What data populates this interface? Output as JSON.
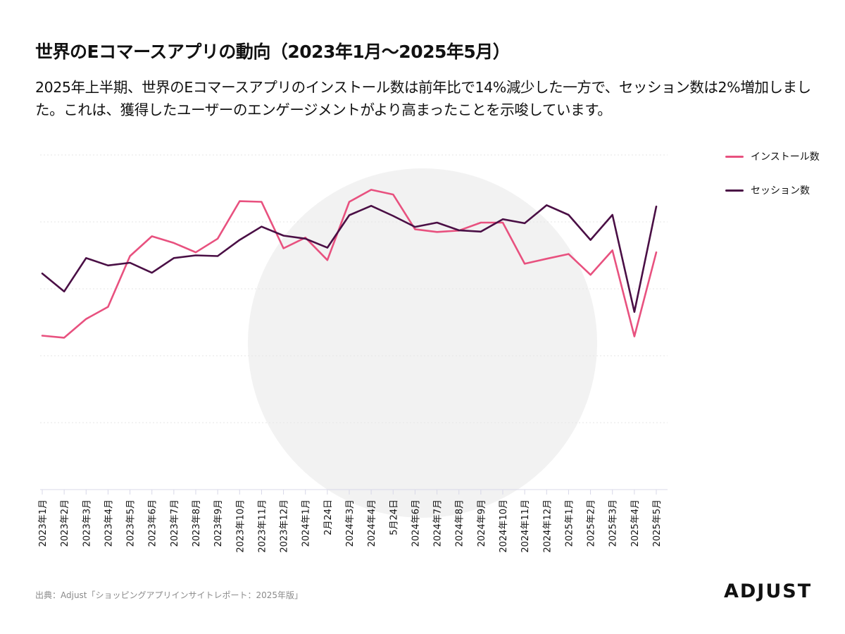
{
  "header": {
    "title": "世界のEコマースアプリの動向（2023年1月〜2025年5月）",
    "subtitle": "2025年上半期、世界のEコマースアプリのインストール数は前年比で14%減少した一方で、セッション数は2%増加しました。これは、獲得したユーザーのエンゲージメントがより高まったことを示唆しています。"
  },
  "footer": {
    "source": "出典：Adjust「ショッピングアプリインサイトレポート：2025年版」",
    "logo_text": "ADJUST"
  },
  "colors": {
    "installs": "#e8517f",
    "sessions": "#4a0f45",
    "grid": "#e6e6e6",
    "axis": "#d8d8e8",
    "watermark": "#f2f2f2"
  },
  "chart_data": {
    "type": "line",
    "title": "",
    "xlabel": "",
    "ylabel": "",
    "ylim": [
      0,
      100
    ],
    "grid": true,
    "legend_position": "top-right",
    "categories": [
      "2023年1月",
      "2023年2月",
      "2023年3月",
      "2023年4月",
      "2023年5月",
      "2023年6月",
      "2023年7月",
      "2023年8月",
      "2023年9月",
      "2023年10月",
      "2023年11月",
      "2023年12月",
      "2024年1月",
      "2月24日",
      "2024年3月",
      "2024年4月",
      "5月24日",
      "2024年6月",
      "2024年7月",
      "2024年8月",
      "2024年9月",
      "2024年10月",
      "2024年11月",
      "2024年12月",
      "2025年1月",
      "2025年2月",
      "2025年3月",
      "2025年4月",
      "2025年5月"
    ],
    "series": [
      {
        "name": "インストール数",
        "color": "#e8517f",
        "values": [
          46.0,
          45.4,
          51.0,
          54.6,
          69.8,
          75.7,
          73.7,
          70.9,
          75.0,
          86.2,
          86.0,
          72.1,
          75.3,
          68.6,
          86.0,
          89.6,
          88.2,
          77.8,
          77.0,
          77.4,
          79.8,
          79.8,
          67.5,
          69.0,
          70.4,
          64.2,
          71.5,
          45.8,
          70.9
        ]
      },
      {
        "name": "セッション数",
        "color": "#4a0f45",
        "values": [
          64.6,
          59.2,
          69.2,
          67.0,
          67.8,
          64.8,
          69.2,
          70.0,
          69.8,
          74.6,
          78.6,
          75.9,
          75.0,
          72.3,
          82.0,
          84.8,
          81.8,
          78.5,
          79.8,
          77.5,
          77.1,
          80.8,
          79.6,
          85.0,
          82.1,
          74.6,
          82.1,
          53.1,
          84.6
        ]
      }
    ]
  }
}
